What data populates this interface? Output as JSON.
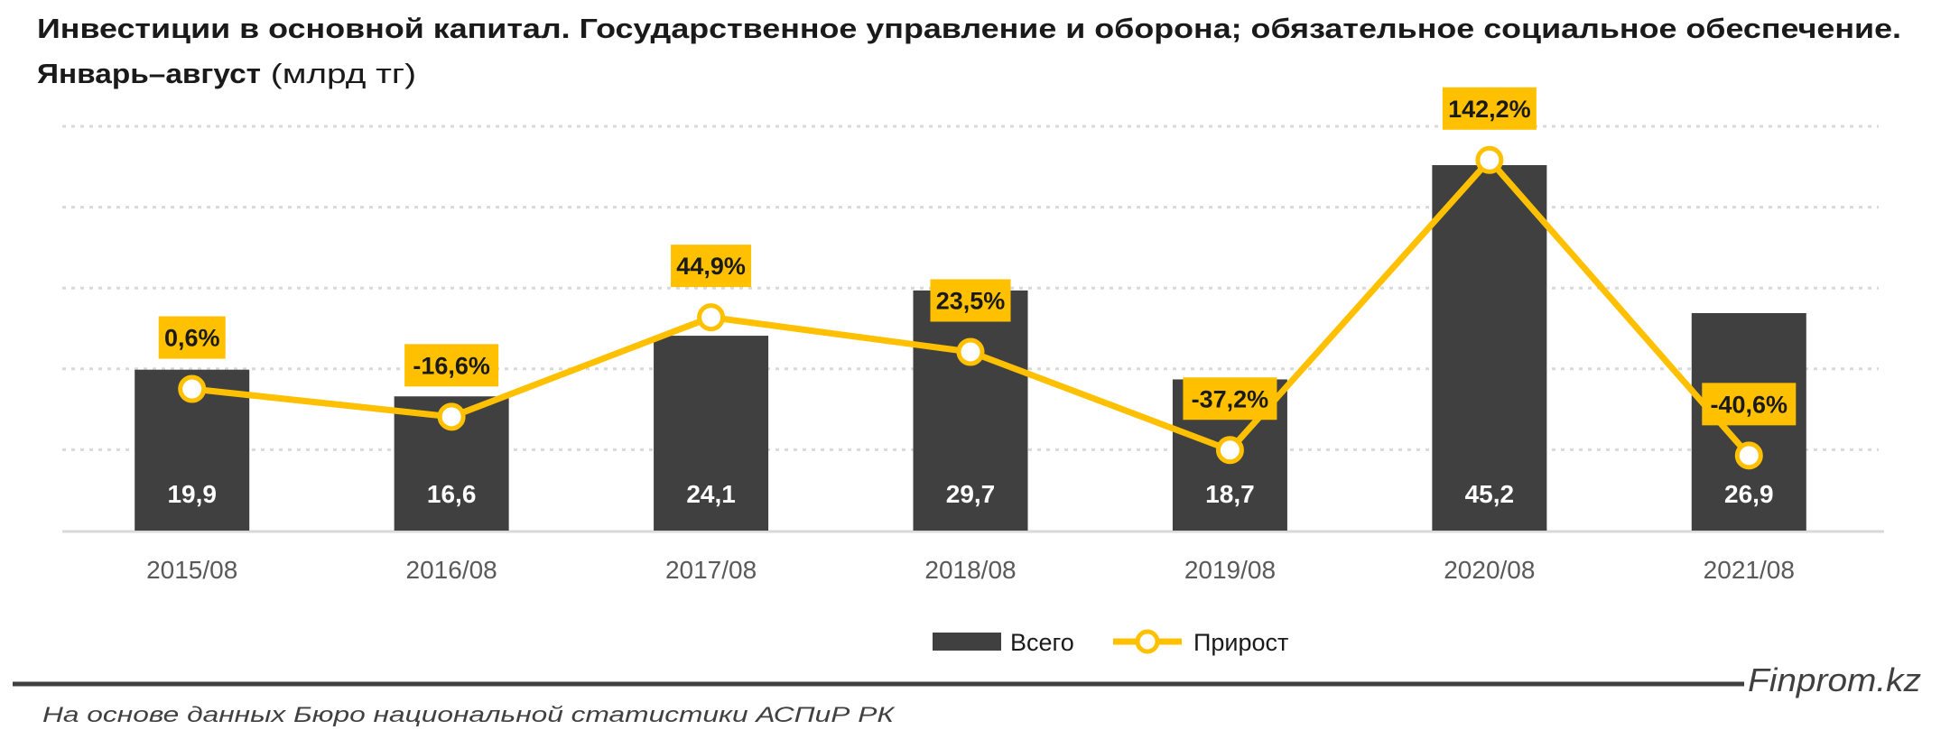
{
  "title": {
    "line1": "Инвестиции в основной капитал. Государственное управление и оборона; обязательное социальное обеспечение.",
    "line2_bold": "Январь–август",
    "line2_normal": " (млрд тг)"
  },
  "chart_data": {
    "type": "bar+line",
    "categories": [
      "2015/08",
      "2016/08",
      "2017/08",
      "2018/08",
      "2019/08",
      "2020/08",
      "2021/08"
    ],
    "series": [
      {
        "name": "Всего",
        "type": "bar",
        "values": [
          19.9,
          16.6,
          24.1,
          29.7,
          18.7,
          45.2,
          26.9
        ],
        "labels": [
          "19,9",
          "16,6",
          "24,1",
          "29,7",
          "18,7",
          "45,2",
          "26,9"
        ],
        "color": "#404040"
      },
      {
        "name": "Прирост",
        "type": "line",
        "axis": "secondary",
        "values": [
          0.6,
          -16.6,
          44.9,
          23.5,
          -37.2,
          142.2,
          -40.6
        ],
        "labels": [
          "0,6%",
          "-16,6%",
          "44,9%",
          "23,5%",
          "-37,2%",
          "142,2%",
          "-40,6%"
        ],
        "color": "#FFC000"
      }
    ],
    "ylim": [
      0,
      50
    ],
    "y2lim": [
      -87,
      163
    ],
    "grid": true,
    "legend": "bottom"
  },
  "footer": {
    "brand": "Finprom.kz",
    "source": "На основе данных Бюро национальной статистики АСПиР РК"
  }
}
